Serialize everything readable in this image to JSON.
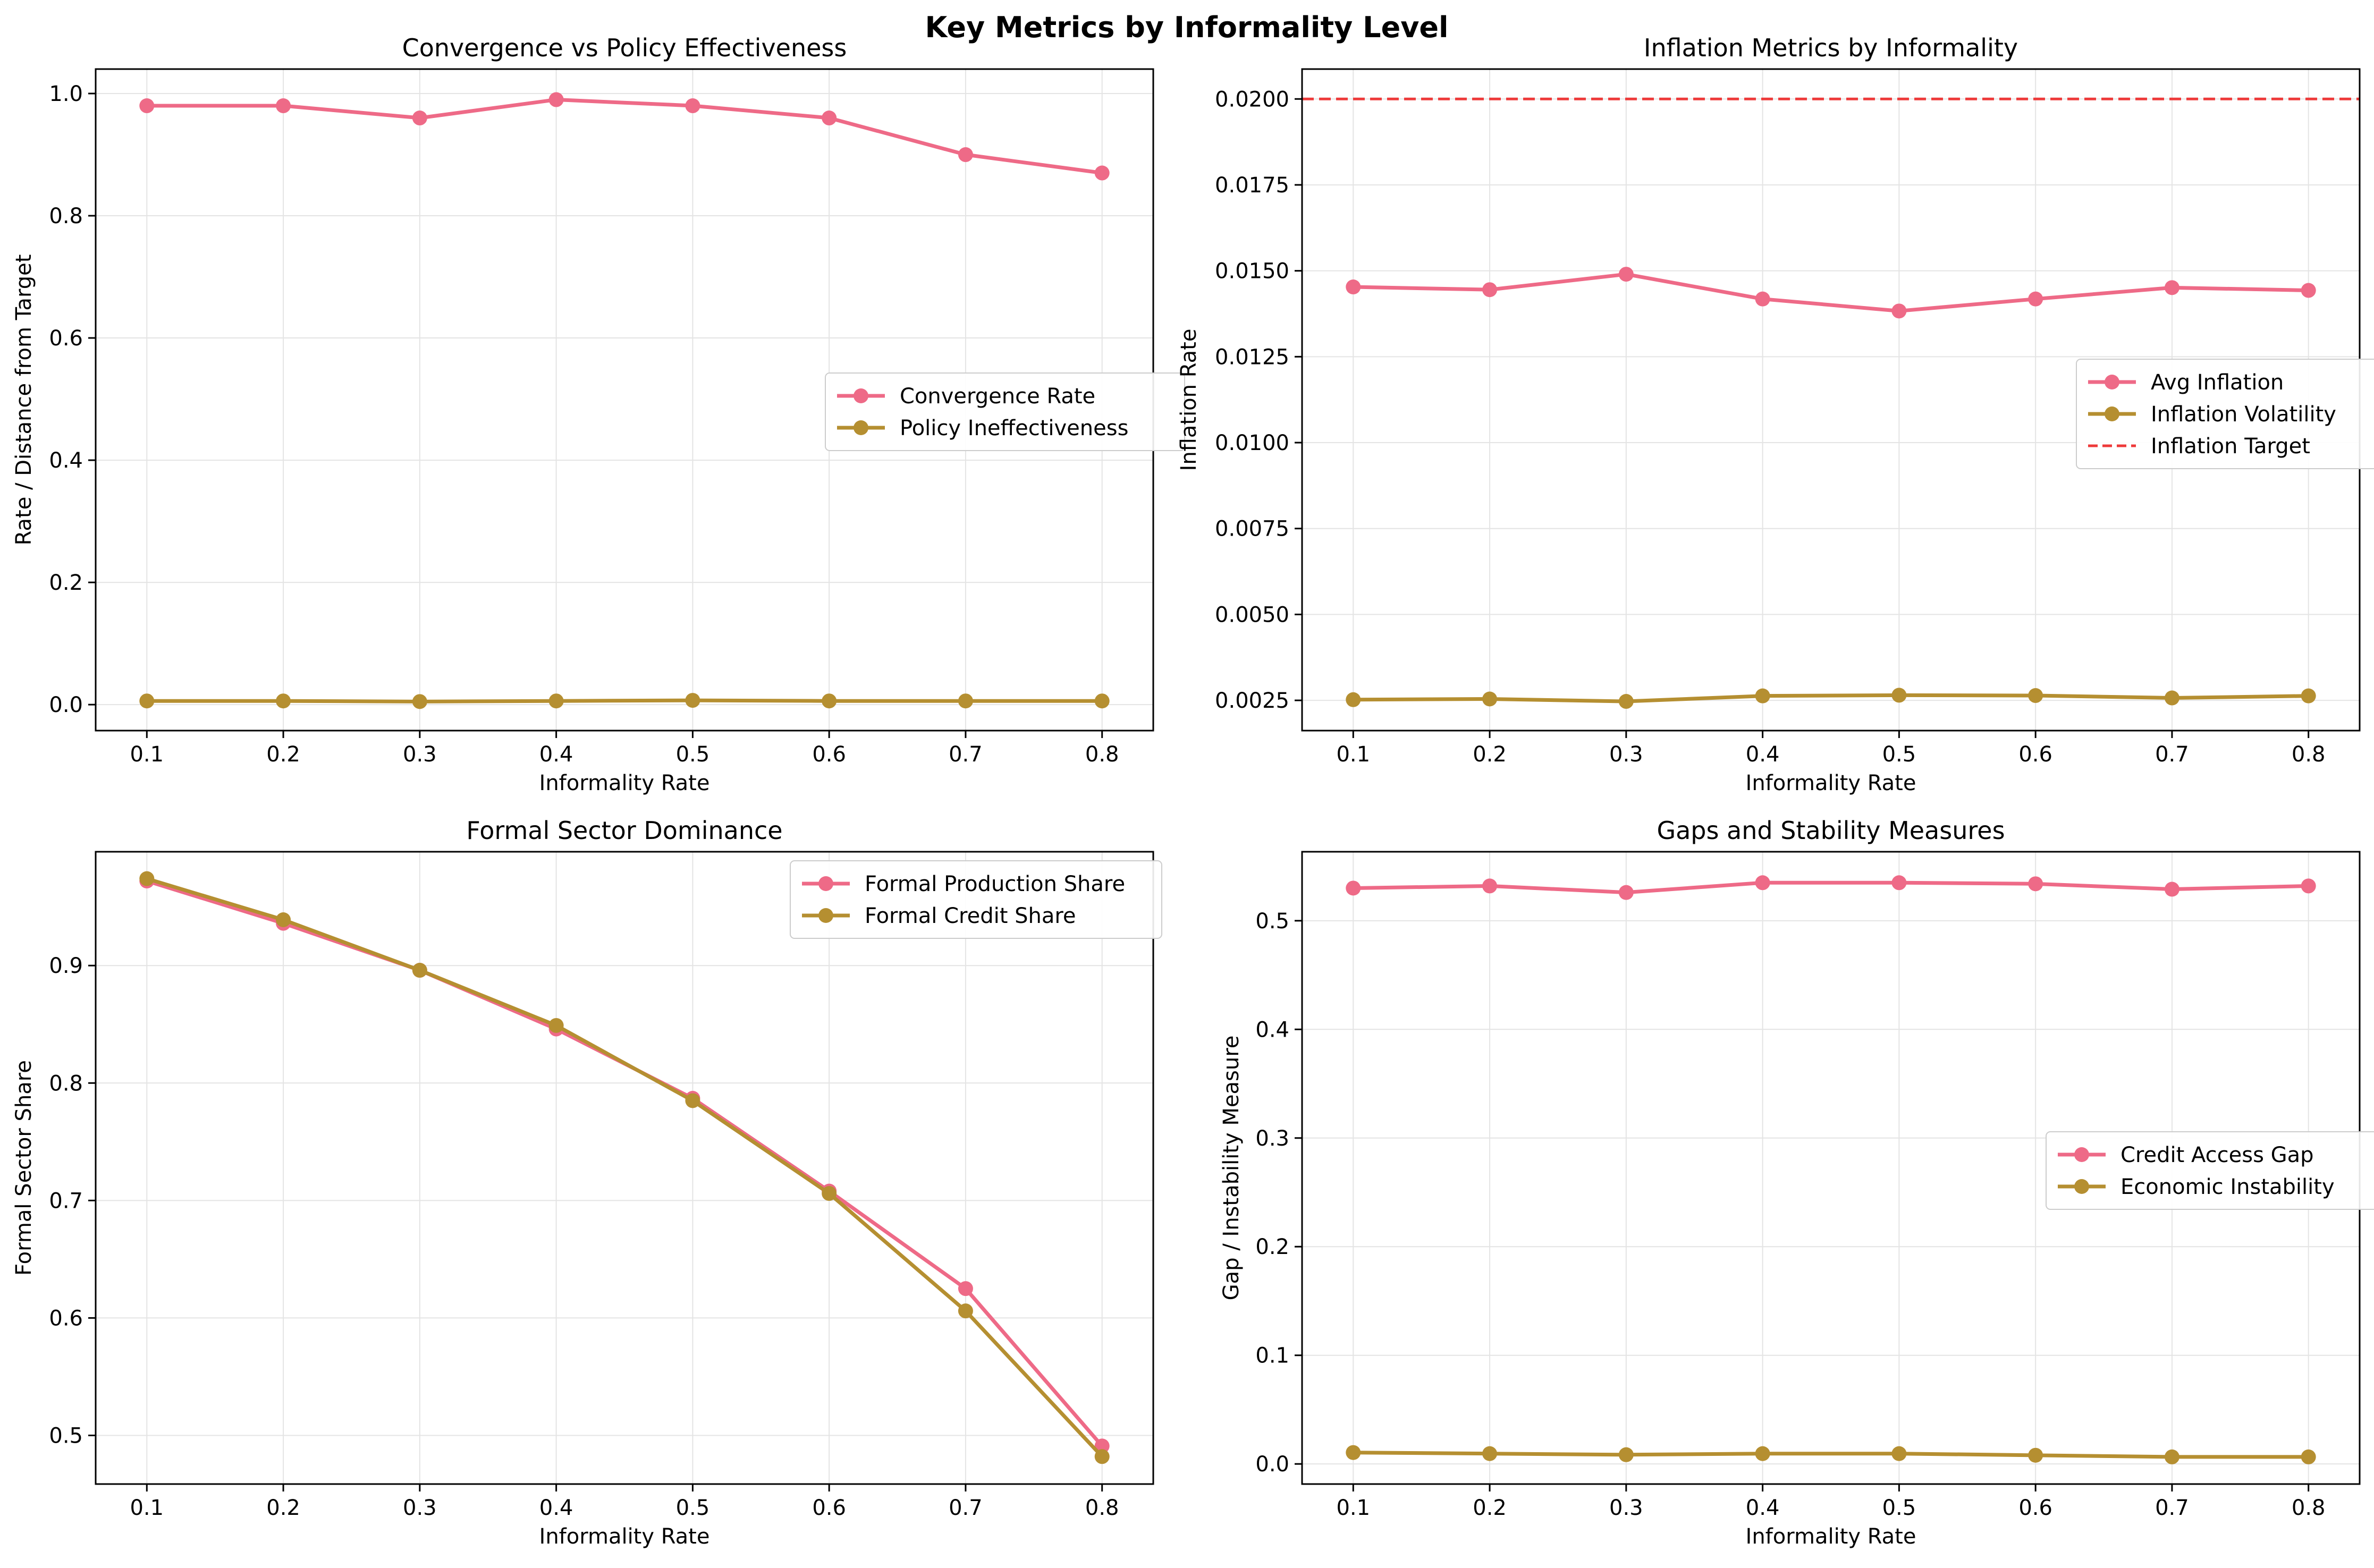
{
  "figure_title": "Key Metrics by Informality Level",
  "colors": {
    "series_a": "#ee6a87",
    "series_b": "#b58f31",
    "target_line": "#ee3a3a",
    "grid": "#e4e4e4",
    "axis": "#000000"
  },
  "chart_data": [
    {
      "type": "line",
      "title": "Convergence vs Policy Effectiveness",
      "xlabel": "Informality Rate",
      "ylabel": "Rate / Distance from Target",
      "x": [
        0.1,
        0.2,
        0.3,
        0.4,
        0.5,
        0.6,
        0.7,
        0.8
      ],
      "x_ticks": [
        "0.1",
        "0.2",
        "0.3",
        "0.4",
        "0.5",
        "0.6",
        "0.7",
        "0.8"
      ],
      "xlim": [
        0.0625,
        0.8375
      ],
      "ylim": [
        -0.0425,
        1.04
      ],
      "y_ticks": [
        0.0,
        0.2,
        0.4,
        0.6,
        0.8,
        1.0
      ],
      "y_tick_labels": [
        "0.0",
        "0.2",
        "0.4",
        "0.6",
        "0.8",
        "1.0"
      ],
      "grid": true,
      "legend": "center-right",
      "series": [
        {
          "name": "Convergence Rate",
          "color": "#ee6a87",
          "marker": "circle",
          "values": [
            0.98,
            0.98,
            0.96,
            0.99,
            0.98,
            0.96,
            0.9,
            0.87
          ]
        },
        {
          "name": "Policy Ineffectiveness",
          "color": "#b58f31",
          "marker": "circle",
          "values": [
            0.006,
            0.006,
            0.005,
            0.006,
            0.007,
            0.006,
            0.006,
            0.006
          ]
        }
      ]
    },
    {
      "type": "line",
      "title": "Inflation Metrics by Informality",
      "xlabel": "Informality Rate",
      "ylabel": "Inflation Rate",
      "x": [
        0.1,
        0.2,
        0.3,
        0.4,
        0.5,
        0.6,
        0.7,
        0.8
      ],
      "x_ticks": [
        "0.1",
        "0.2",
        "0.3",
        "0.4",
        "0.5",
        "0.6",
        "0.7",
        "0.8"
      ],
      "xlim": [
        0.0625,
        0.8375
      ],
      "ylim": [
        0.00162,
        0.02087
      ],
      "y_ticks": [
        0.0025,
        0.005,
        0.0075,
        0.01,
        0.0125,
        0.015,
        0.0175,
        0.02
      ],
      "y_tick_labels": [
        "0.0025",
        "0.0050",
        "0.0075",
        "0.0100",
        "0.0125",
        "0.0150",
        "0.0175",
        "0.0200"
      ],
      "grid": true,
      "legend": "center-right",
      "series": [
        {
          "name": "Avg Inflation",
          "color": "#ee6a87",
          "marker": "circle",
          "values": [
            0.01453,
            0.01445,
            0.0149,
            0.01418,
            0.01383,
            0.01418,
            0.01451,
            0.01443
          ]
        },
        {
          "name": "Inflation Volatility",
          "color": "#b58f31",
          "marker": "circle",
          "values": [
            0.00252,
            0.00254,
            0.00247,
            0.00263,
            0.00265,
            0.00264,
            0.00257,
            0.00263
          ]
        }
      ],
      "reference_lines": [
        {
          "name": "Inflation Target",
          "y": 0.02,
          "color": "#ee3a3a",
          "style": "dashed"
        }
      ]
    },
    {
      "type": "line",
      "title": "Formal Sector Dominance",
      "xlabel": "Informality Rate",
      "ylabel": "Formal Sector Share",
      "x": [
        0.1,
        0.2,
        0.3,
        0.4,
        0.5,
        0.6,
        0.7,
        0.8
      ],
      "x_ticks": [
        "0.1",
        "0.2",
        "0.3",
        "0.4",
        "0.5",
        "0.6",
        "0.7",
        "0.8"
      ],
      "xlim": [
        0.0625,
        0.8375
      ],
      "ylim": [
        0.4586,
        0.9969
      ],
      "y_ticks": [
        0.5,
        0.6,
        0.7,
        0.8,
        0.9
      ],
      "y_tick_labels": [
        "0.5",
        "0.6",
        "0.7",
        "0.8",
        "0.9"
      ],
      "grid": true,
      "legend": "top-right",
      "series": [
        {
          "name": "Formal Production Share",
          "color": "#ee6a87",
          "marker": "circle",
          "values": [
            0.972,
            0.936,
            0.896,
            0.846,
            0.787,
            0.708,
            0.625,
            0.491
          ]
        },
        {
          "name": "Formal Credit Share",
          "color": "#b58f31",
          "marker": "circle",
          "values": [
            0.974,
            0.939,
            0.896,
            0.849,
            0.785,
            0.706,
            0.606,
            0.482
          ]
        }
      ]
    },
    {
      "type": "line",
      "title": "Gaps and Stability Measures",
      "xlabel": "Informality Rate",
      "ylabel": "Gap / Instability Measure",
      "x": [
        0.1,
        0.2,
        0.3,
        0.4,
        0.5,
        0.6,
        0.7,
        0.8
      ],
      "x_ticks": [
        "0.1",
        "0.2",
        "0.3",
        "0.4",
        "0.5",
        "0.6",
        "0.7",
        "0.8"
      ],
      "xlim": [
        0.0625,
        0.8375
      ],
      "ylim": [
        -0.0185,
        0.5635
      ],
      "y_ticks": [
        0.0,
        0.1,
        0.2,
        0.3,
        0.4,
        0.5
      ],
      "y_tick_labels": [
        "0.0",
        "0.1",
        "0.2",
        "0.3",
        "0.4",
        "0.5"
      ],
      "grid": true,
      "legend": "center-right",
      "series": [
        {
          "name": "Credit Access Gap",
          "color": "#ee6a87",
          "marker": "circle",
          "values": [
            0.53,
            0.532,
            0.526,
            0.535,
            0.535,
            0.534,
            0.529,
            0.532
          ]
        },
        {
          "name": "Economic Instability",
          "color": "#b58f31",
          "marker": "circle",
          "values": [
            0.0105,
            0.0095,
            0.0085,
            0.0095,
            0.0095,
            0.008,
            0.0065,
            0.0065
          ]
        }
      ]
    }
  ]
}
